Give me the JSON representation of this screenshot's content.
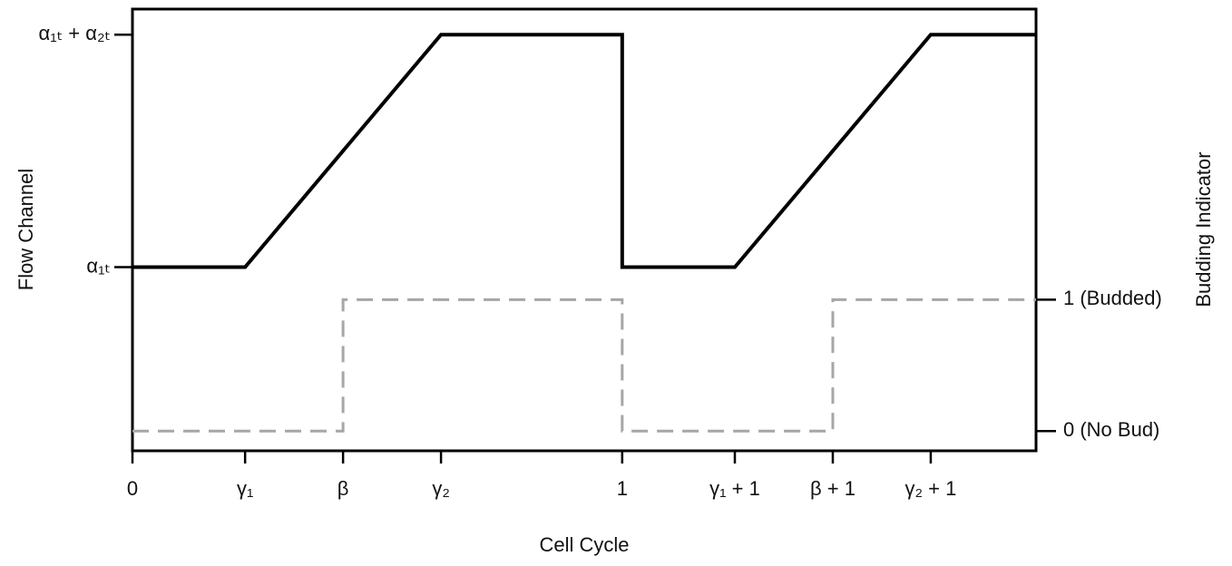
{
  "chart_data": {
    "type": "line",
    "x_label": "Cell Cycle",
    "y_label": "Flow Channel",
    "y2_label": "Budding Indicator",
    "xlim": [
      0,
      1.845
    ],
    "ylim": [
      0.21,
      2.11
    ],
    "y2lim": [
      -0.15,
      3.21
    ],
    "xticks": [
      0,
      {
        "value": 0.23,
        "label": "γ₁"
      },
      {
        "value": 0.43,
        "label": "β"
      },
      {
        "value": 0.63,
        "label": "γ₂"
      },
      1,
      {
        "value": 1.23,
        "label": "γ₁ + 1"
      },
      {
        "value": 1.43,
        "label": "β + 1"
      },
      {
        "value": 1.63,
        "label": "γ₂ + 1"
      }
    ],
    "yticks": [
      {
        "value": 1,
        "label": "α₁ₜ"
      },
      {
        "value": 2,
        "label": "α₁ₜ + α₂ₜ"
      }
    ],
    "y2ticks": [
      {
        "value": 0,
        "label": "0 (No Bud)"
      },
      {
        "value": 1,
        "label": "1 (Budded)"
      }
    ],
    "series": [
      {
        "color": "#000000",
        "dashed": false,
        "x": [
          0,
          0.23,
          0.63,
          1,
          1,
          1.23,
          1.63,
          1.845
        ],
        "values": [
          1,
          1,
          2,
          2,
          1,
          1,
          2,
          2
        ]
      },
      {
        "color": "#a6a6a6",
        "dashed": true,
        "axis": "y2",
        "x": [
          0,
          0.43,
          0.43,
          1,
          1,
          1.43,
          1.43,
          1.845
        ],
        "values": [
          0,
          0,
          1,
          1,
          0,
          0,
          1,
          1
        ]
      }
    ]
  }
}
